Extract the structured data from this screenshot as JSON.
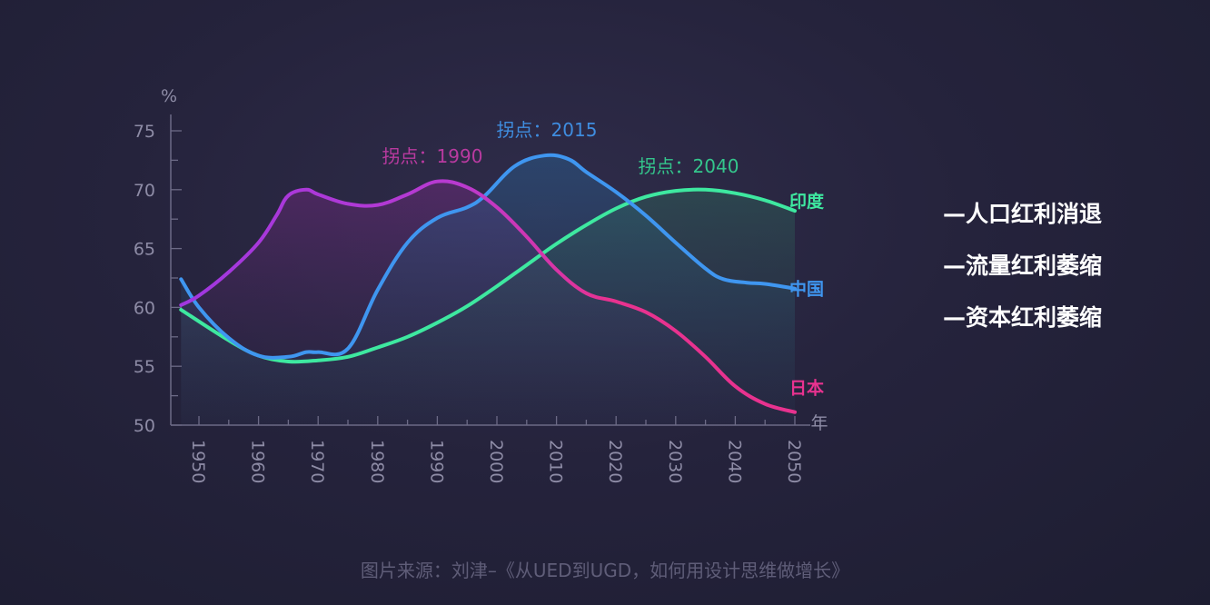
{
  "chart_data": {
    "type": "line",
    "title": "",
    "y_unit_label": "%",
    "x_unit_label": "年",
    "ylim": [
      50,
      75
    ],
    "xlim": [
      1945,
      2050
    ],
    "y_ticks": [
      50,
      55,
      60,
      65,
      70,
      75
    ],
    "x_ticks": [
      1950,
      1960,
      1970,
      1980,
      1990,
      2000,
      2010,
      2020,
      2030,
      2040,
      2050
    ],
    "series": [
      {
        "name": "印度",
        "color": "#3ee8a0",
        "x": [
          1947,
          1955,
          1960,
          1965,
          1970,
          1975,
          1980,
          1985,
          1990,
          1995,
          2000,
          2005,
          2010,
          2015,
          2020,
          2025,
          2030,
          2035,
          2040,
          2045,
          2050
        ],
        "values": [
          59.8,
          57.2,
          55.9,
          55.4,
          55.5,
          55.8,
          56.6,
          57.5,
          58.7,
          60.1,
          61.8,
          63.6,
          65.4,
          67.0,
          68.4,
          69.4,
          69.9,
          70.0,
          69.7,
          69.1,
          68.2
        ]
      },
      {
        "name": "中国",
        "color": "#3f96f0",
        "x": [
          1947,
          1950,
          1955,
          1960,
          1965,
          1968,
          1970,
          1975,
          1980,
          1985,
          1990,
          1995,
          1998,
          2003,
          2008,
          2012,
          2015,
          2020,
          2025,
          2030,
          2035,
          2038,
          2042,
          2045,
          2050
        ],
        "values": [
          62.4,
          60.0,
          57.4,
          55.9,
          55.8,
          56.2,
          56.2,
          56.5,
          61.5,
          65.5,
          67.6,
          68.5,
          69.5,
          72.0,
          72.9,
          72.6,
          71.5,
          69.8,
          67.8,
          65.5,
          63.3,
          62.4,
          62.1,
          62.0,
          61.6
        ]
      },
      {
        "name": "日本",
        "color": "#e8328f",
        "x": [
          1947,
          1950,
          1955,
          1960,
          1963,
          1965,
          1968,
          1970,
          1975,
          1980,
          1985,
          1990,
          1995,
          2000,
          2005,
          2010,
          2015,
          2020,
          2025,
          2030,
          2035,
          2040,
          2045,
          2050
        ],
        "values": [
          60.2,
          61.0,
          63.0,
          65.5,
          67.8,
          69.5,
          70.0,
          69.6,
          68.8,
          68.7,
          69.6,
          70.7,
          70.2,
          68.5,
          66.0,
          63.2,
          61.2,
          60.5,
          59.6,
          58.0,
          55.8,
          53.3,
          51.8,
          51.1
        ]
      }
    ],
    "gradient_colors": {
      "purple": "#a037e0",
      "pink": "#e8328f"
    },
    "annotations": [
      {
        "text": "拐点：1990",
        "x": 1990,
        "color": "#b93aa0"
      },
      {
        "text": "拐点：2015",
        "x": 2015,
        "color": "#3f8de0"
      },
      {
        "text": "拐点：2040",
        "x": 2040,
        "color": "#34c68c"
      }
    ]
  },
  "bullets": [
    "—人口红利消退",
    "—流量红利萎缩",
    "—资本红利萎缩"
  ],
  "source_text": "图片来源：刘津–《从UED到UGD，如何用设计思维做增长》"
}
